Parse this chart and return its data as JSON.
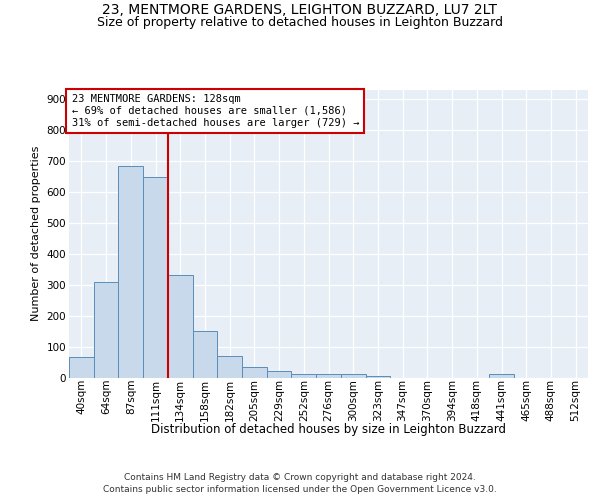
{
  "title": "23, MENTMORE GARDENS, LEIGHTON BUZZARD, LU7 2LT",
  "subtitle": "Size of property relative to detached houses in Leighton Buzzard",
  "xlabel": "Distribution of detached houses by size in Leighton Buzzard",
  "ylabel": "Number of detached properties",
  "bin_labels": [
    "40sqm",
    "64sqm",
    "87sqm",
    "111sqm",
    "134sqm",
    "158sqm",
    "182sqm",
    "205sqm",
    "229sqm",
    "252sqm",
    "276sqm",
    "300sqm",
    "323sqm",
    "347sqm",
    "370sqm",
    "394sqm",
    "418sqm",
    "441sqm",
    "465sqm",
    "488sqm",
    "512sqm"
  ],
  "bar_values": [
    65,
    310,
    685,
    650,
    330,
    150,
    68,
    35,
    20,
    10,
    10,
    10,
    5,
    0,
    0,
    0,
    0,
    10,
    0,
    0,
    0
  ],
  "bar_color": "#c9d9ec",
  "bar_edge_color": "#5b8db8",
  "vline_color": "#cc0000",
  "vline_position": 3.5,
  "annotation_text": "23 MENTMORE GARDENS: 128sqm\n← 69% of detached houses are smaller (1,586)\n31% of semi-detached houses are larger (729) →",
  "annotation_box_facecolor": "#ffffff",
  "annotation_box_edgecolor": "#cc0000",
  "footer_line1": "Contains HM Land Registry data © Crown copyright and database right 2024.",
  "footer_line2": "Contains public sector information licensed under the Open Government Licence v3.0.",
  "ylim_max": 930,
  "yticks": [
    0,
    100,
    200,
    300,
    400,
    500,
    600,
    700,
    800,
    900
  ],
  "bg_color": "#e8eef6",
  "grid_color": "#ffffff",
  "title_fontsize": 10,
  "subtitle_fontsize": 9,
  "ylabel_fontsize": 8,
  "xlabel_fontsize": 8.5,
  "tick_fontsize": 7.5,
  "footer_fontsize": 6.5,
  "annot_fontsize": 7.5
}
